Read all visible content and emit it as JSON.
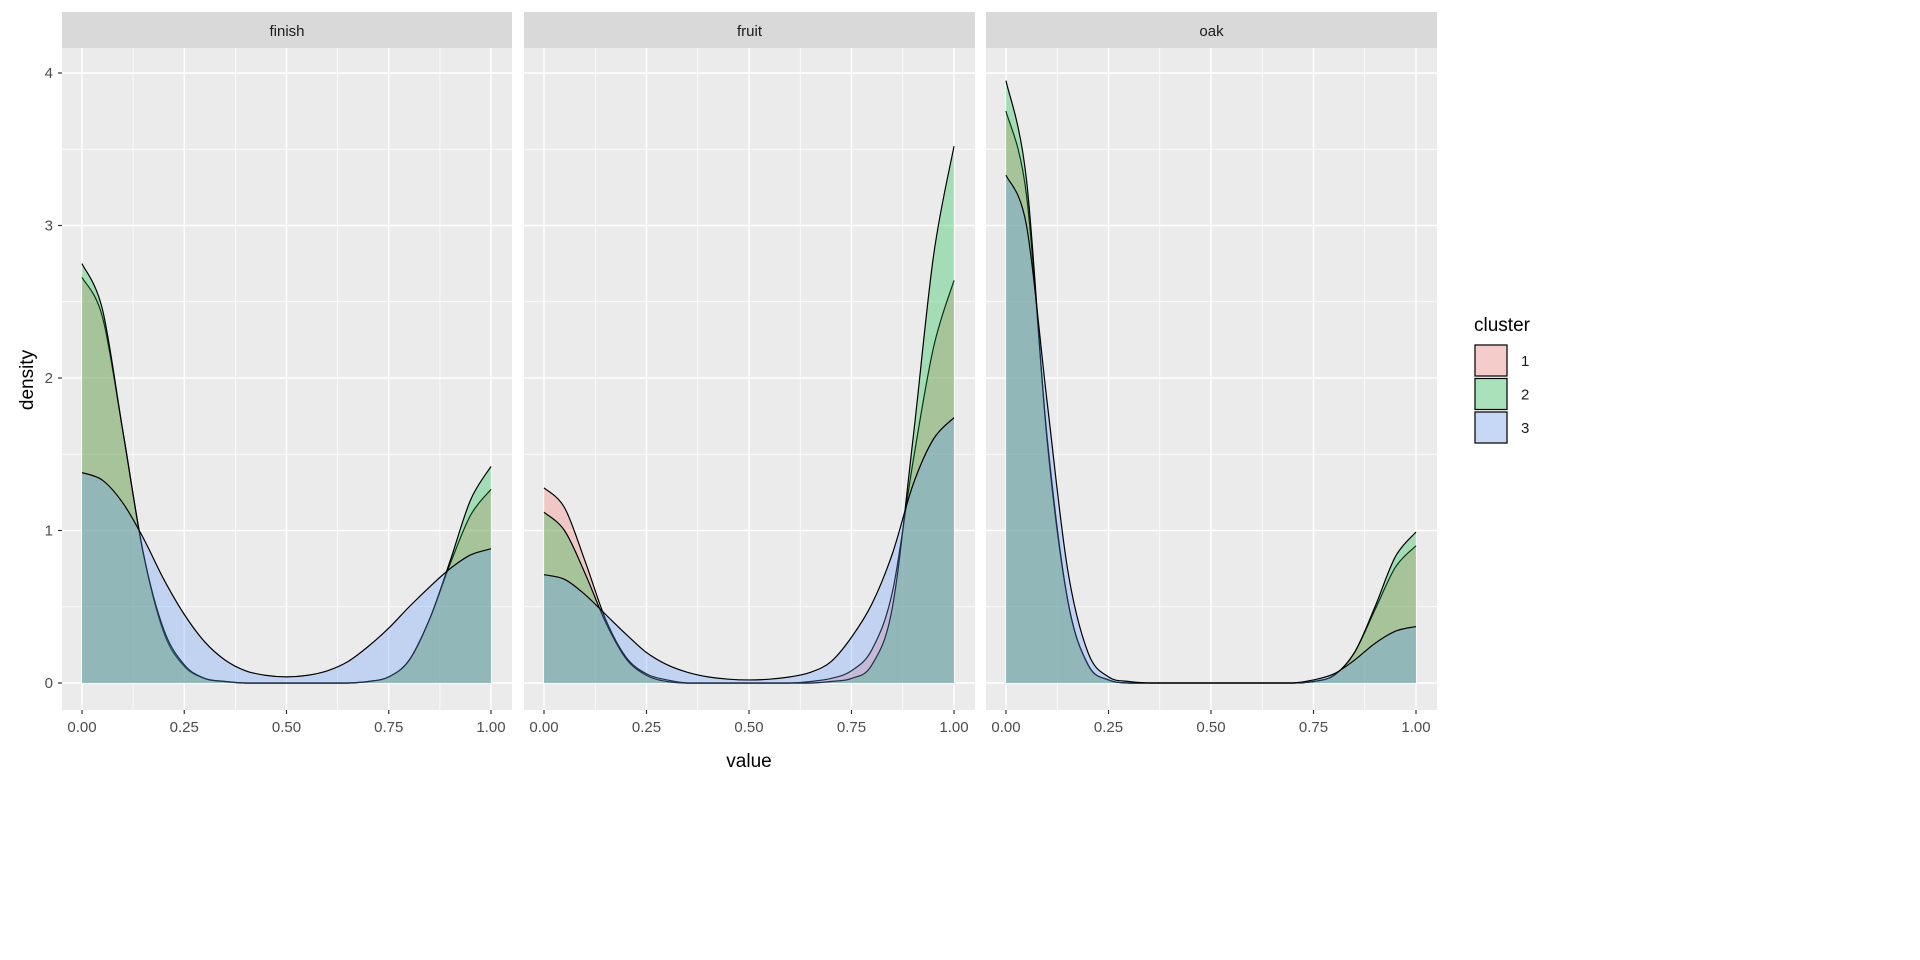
{
  "chart_data": {
    "type": "area",
    "subtype": "density (faceted)",
    "xlabel": "value",
    "ylabel": "density",
    "xlim": [
      0,
      1
    ],
    "ylim": [
      -0.18,
      4.16
    ],
    "x_ticks": [
      "0.00",
      "0.25",
      "0.50",
      "0.75",
      "1.00"
    ],
    "y_ticks": [
      "0",
      "1",
      "2",
      "3",
      "4"
    ],
    "grid": true,
    "legend": {
      "title": "cluster",
      "placement": "right",
      "entries": [
        "1",
        "2",
        "3"
      ]
    },
    "colors": {
      "1": "#F8766D",
      "2": "#00BA38",
      "3": "#619CFF"
    },
    "fill_alpha": 0.3,
    "x": [
      0,
      0.05,
      0.1,
      0.15,
      0.2,
      0.25,
      0.3,
      0.35,
      0.4,
      0.45,
      0.5,
      0.55,
      0.6,
      0.65,
      0.7,
      0.75,
      0.8,
      0.85,
      0.9,
      0.95,
      1
    ],
    "facets": [
      {
        "name": "finish",
        "series": [
          {
            "name": "1",
            "values": [
              2.66,
              2.4,
              1.65,
              0.85,
              0.33,
              0.11,
              0.03,
              0.01,
              0,
              0,
              0,
              0,
              0,
              0,
              0.01,
              0.04,
              0.15,
              0.42,
              0.78,
              1.1,
              1.27
            ]
          },
          {
            "name": "2",
            "values": [
              2.75,
              2.45,
              1.65,
              0.85,
              0.35,
              0.12,
              0.03,
              0.01,
              0,
              0,
              0,
              0,
              0,
              0,
              0.01,
              0.04,
              0.15,
              0.42,
              0.8,
              1.2,
              1.42
            ]
          },
          {
            "name": "3",
            "values": [
              1.38,
              1.33,
              1.18,
              0.95,
              0.68,
              0.45,
              0.27,
              0.15,
              0.08,
              0.05,
              0.04,
              0.05,
              0.08,
              0.14,
              0.24,
              0.36,
              0.5,
              0.63,
              0.75,
              0.84,
              0.88
            ]
          }
        ]
      },
      {
        "name": "fruit",
        "series": [
          {
            "name": "1",
            "values": [
              1.28,
              1.15,
              0.8,
              0.42,
              0.17,
              0.06,
              0.02,
              0,
              0,
              0,
              0,
              0,
              0,
              0.01,
              0.03,
              0.08,
              0.22,
              0.6,
              1.45,
              2.2,
              2.64
            ]
          },
          {
            "name": "2",
            "values": [
              1.12,
              1.0,
              0.72,
              0.4,
              0.16,
              0.05,
              0.01,
              0,
              0,
              0,
              0,
              0,
              0,
              0,
              0.01,
              0.03,
              0.12,
              0.5,
              1.6,
              2.8,
              3.52
            ]
          },
          {
            "name": "3",
            "values": [
              0.71,
              0.68,
              0.58,
              0.45,
              0.32,
              0.2,
              0.12,
              0.07,
              0.04,
              0.025,
              0.02,
              0.025,
              0.04,
              0.07,
              0.14,
              0.3,
              0.52,
              0.85,
              1.3,
              1.6,
              1.74
            ]
          }
        ]
      },
      {
        "name": "oak",
        "series": [
          {
            "name": "1",
            "values": [
              3.75,
              3.2,
              1.62,
              0.55,
              0.12,
              0.02,
              0,
              0,
              0,
              0,
              0,
              0,
              0,
              0,
              0,
              0.01,
              0.05,
              0.2,
              0.48,
              0.76,
              0.9
            ]
          },
          {
            "name": "2",
            "values": [
              3.95,
              3.3,
              1.6,
              0.55,
              0.12,
              0.02,
              0,
              0,
              0,
              0,
              0,
              0,
              0,
              0,
              0,
              0.01,
              0.05,
              0.2,
              0.5,
              0.83,
              0.99
            ]
          },
          {
            "name": "3",
            "values": [
              3.33,
              3.0,
              1.85,
              0.75,
              0.2,
              0.04,
              0.01,
              0,
              0,
              0,
              0,
              0,
              0,
              0,
              0,
              0.02,
              0.06,
              0.15,
              0.26,
              0.34,
              0.37
            ]
          }
        ]
      }
    ]
  }
}
